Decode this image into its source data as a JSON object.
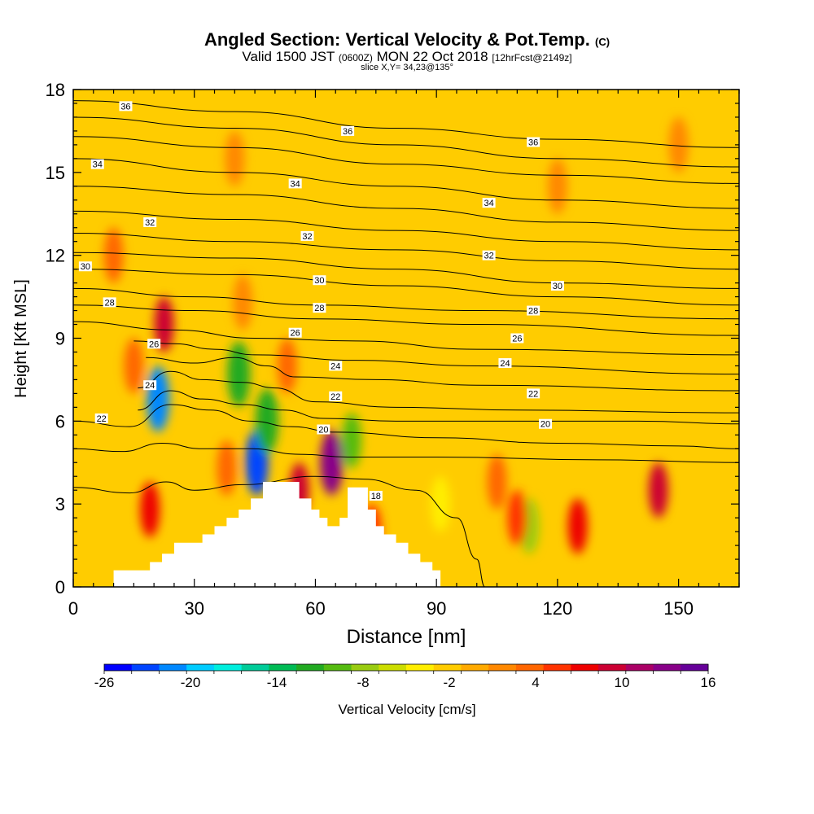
{
  "title": {
    "main": "Angled Section: Vertical Velocity & Pot.Temp.",
    "main_unit": "(C)",
    "valid": "Valid 1500 JST",
    "valid_utc": "(0600Z)",
    "valid_date": "MON 22 Oct 2018",
    "forecast": "[12hrFcst@2149z]",
    "slice": "slice X,Y= 34,23@135°"
  },
  "chart_data": {
    "type": "heatmap",
    "xlabel": "Distance [nm]",
    "ylabel": "Height [Kft MSL]",
    "xlim": [
      0,
      165
    ],
    "ylim": [
      0,
      18
    ],
    "xticks": [
      0,
      30,
      60,
      90,
      120,
      150
    ],
    "yticks": [
      0,
      3,
      6,
      9,
      12,
      15,
      18
    ],
    "colorbar": {
      "label": "Vertical Velocity [cm/s]",
      "range": [
        -26,
        16
      ],
      "tick_values": [
        -26,
        -20,
        -14,
        -8,
        -2,
        4,
        10,
        16
      ],
      "tick_labels": [
        "-26",
        "-20",
        "-14",
        "-8",
        "-2",
        "4",
        "10",
        "16"
      ],
      "colors": [
        "#0000ff",
        "#0044ff",
        "#0088ff",
        "#00ccff",
        "#00eedd",
        "#00cc99",
        "#00bb55",
        "#22aa22",
        "#55bb11",
        "#99cc11",
        "#ccdd00",
        "#ffee00",
        "#ffcc00",
        "#ffaa00",
        "#ff8800",
        "#ff6600",
        "#ff3300",
        "#ee0000",
        "#cc0033",
        "#aa0066",
        "#880088",
        "#660099"
      ]
    },
    "background_value": -1.5,
    "features": [
      {
        "x": 21,
        "y": 6.8,
        "value": -22
      },
      {
        "x": 41,
        "y": 7.7,
        "value": -12
      },
      {
        "x": 45.5,
        "y": 4.5,
        "value": -24
      },
      {
        "x": 48,
        "y": 6.0,
        "value": -12
      },
      {
        "x": 69,
        "y": 5.3,
        "value": -10
      },
      {
        "x": 113,
        "y": 2.2,
        "value": -7
      },
      {
        "x": 91,
        "y": 3.0,
        "value": -5
      },
      {
        "x": 64,
        "y": 4.5,
        "value": 14
      },
      {
        "x": 56,
        "y": 3.5,
        "value": 10
      },
      {
        "x": 19,
        "y": 2.8,
        "value": 8
      },
      {
        "x": 22.5,
        "y": 9.5,
        "value": 9
      },
      {
        "x": 145,
        "y": 3.5,
        "value": 10
      },
      {
        "x": 125,
        "y": 2.2,
        "value": 7
      },
      {
        "x": 110,
        "y": 2.5,
        "value": 5
      },
      {
        "x": 105,
        "y": 3.8,
        "value": 3
      },
      {
        "x": 53,
        "y": 8.0,
        "value": 4
      },
      {
        "x": 74,
        "y": 2.0,
        "value": 6
      },
      {
        "x": 10,
        "y": 12.0,
        "value": 3
      },
      {
        "x": 15,
        "y": 8.0,
        "value": 3
      },
      {
        "x": 42,
        "y": 10.3,
        "value": 2
      },
      {
        "x": 120,
        "y": 14.5,
        "value": 1
      },
      {
        "x": 150,
        "y": 16.0,
        "value": 1
      },
      {
        "x": 40,
        "y": 15.5,
        "value": 1
      },
      {
        "x": 38,
        "y": 4.3,
        "value": 3
      }
    ],
    "terrain": [
      [
        10,
        0.6
      ],
      [
        19,
        0.6
      ],
      [
        19,
        0.9
      ],
      [
        22,
        0.9
      ],
      [
        22,
        1.2
      ],
      [
        25,
        1.2
      ],
      [
        25,
        1.6
      ],
      [
        32,
        1.6
      ],
      [
        32,
        1.9
      ],
      [
        35,
        1.9
      ],
      [
        35,
        2.2
      ],
      [
        38,
        2.2
      ],
      [
        38,
        2.5
      ],
      [
        41,
        2.5
      ],
      [
        41,
        2.8
      ],
      [
        44,
        2.8
      ],
      [
        44,
        3.2
      ],
      [
        47,
        3.2
      ],
      [
        47,
        3.8
      ],
      [
        56,
        3.8
      ],
      [
        56,
        3.2
      ],
      [
        59,
        3.2
      ],
      [
        59,
        2.8
      ],
      [
        61,
        2.8
      ],
      [
        61,
        2.5
      ],
      [
        63,
        2.5
      ],
      [
        63,
        2.2
      ],
      [
        66,
        2.2
      ],
      [
        66,
        2.5
      ],
      [
        68,
        2.5
      ],
      [
        68,
        3.6
      ],
      [
        73,
        3.6
      ],
      [
        73,
        2.8
      ],
      [
        75,
        2.8
      ],
      [
        75,
        2.2
      ],
      [
        77,
        2.2
      ],
      [
        77,
        1.9
      ],
      [
        80,
        1.9
      ],
      [
        80,
        1.6
      ],
      [
        83,
        1.6
      ],
      [
        83,
        1.2
      ],
      [
        86,
        1.2
      ],
      [
        86,
        0.9
      ],
      [
        89,
        0.9
      ],
      [
        89,
        0.6
      ],
      [
        91,
        0.6
      ],
      [
        91,
        0
      ]
    ],
    "isentropes": [
      {
        "label": "36",
        "points": [
          [
            0,
            17.6
          ],
          [
            40,
            17.2
          ],
          [
            80,
            16.6
          ],
          [
            120,
            16.2
          ],
          [
            165,
            15.9
          ]
        ]
      },
      {
        "label": "",
        "points": [
          [
            0,
            17.0
          ],
          [
            40,
            16.6
          ],
          [
            80,
            16.0
          ],
          [
            120,
            15.5
          ],
          [
            165,
            15.2
          ]
        ]
      },
      {
        "label": "",
        "points": [
          [
            0,
            16.3
          ],
          [
            40,
            15.9
          ],
          [
            80,
            15.3
          ],
          [
            120,
            14.9
          ],
          [
            165,
            14.6
          ]
        ]
      },
      {
        "label": "34",
        "points": [
          [
            0,
            15.5
          ],
          [
            40,
            15.0
          ],
          [
            80,
            14.5
          ],
          [
            120,
            14.0
          ],
          [
            165,
            13.7
          ]
        ]
      },
      {
        "label": "",
        "points": [
          [
            0,
            14.5
          ],
          [
            40,
            14.2
          ],
          [
            80,
            13.7
          ],
          [
            120,
            13.2
          ],
          [
            165,
            12.9
          ]
        ]
      },
      {
        "label": "",
        "points": [
          [
            0,
            13.6
          ],
          [
            40,
            13.3
          ],
          [
            80,
            12.9
          ],
          [
            120,
            12.5
          ],
          [
            165,
            12.2
          ]
        ]
      },
      {
        "label": "32",
        "points": [
          [
            0,
            12.8
          ],
          [
            40,
            12.5
          ],
          [
            80,
            12.2
          ],
          [
            120,
            11.8
          ],
          [
            165,
            11.5
          ]
        ]
      },
      {
        "label": "",
        "points": [
          [
            0,
            12.1
          ],
          [
            40,
            11.9
          ],
          [
            80,
            11.5
          ],
          [
            120,
            11.0
          ],
          [
            165,
            10.8
          ]
        ]
      },
      {
        "label": "30",
        "points": [
          [
            0,
            11.5
          ],
          [
            40,
            11.3
          ],
          [
            80,
            10.9
          ],
          [
            120,
            10.5
          ],
          [
            165,
            10.2
          ]
        ]
      },
      {
        "label": "",
        "points": [
          [
            0,
            10.8
          ],
          [
            30,
            10.5
          ],
          [
            60,
            10.2
          ],
          [
            100,
            10.0
          ],
          [
            165,
            9.7
          ]
        ]
      },
      {
        "label": "28",
        "points": [
          [
            0,
            10.2
          ],
          [
            30,
            10.0
          ],
          [
            60,
            9.7
          ],
          [
            100,
            9.5
          ],
          [
            165,
            9.1
          ]
        ]
      },
      {
        "label": "",
        "points": [
          [
            0,
            9.6
          ],
          [
            25,
            9.3
          ],
          [
            45,
            9.0
          ],
          [
            70,
            8.9
          ],
          [
            100,
            8.6
          ],
          [
            165,
            8.4
          ]
        ]
      },
      {
        "label": "26",
        "points": [
          [
            15,
            8.9
          ],
          [
            25,
            8.8
          ],
          [
            35,
            8.6
          ],
          [
            45,
            8.4
          ],
          [
            70,
            8.2
          ],
          [
            100,
            8.0
          ],
          [
            165,
            7.7
          ]
        ]
      },
      {
        "label": "",
        "points": [
          [
            18,
            8.3
          ],
          [
            30,
            8.1
          ],
          [
            40,
            8.3
          ],
          [
            48,
            8.0
          ],
          [
            55,
            7.6
          ],
          [
            75,
            7.5
          ],
          [
            100,
            7.3
          ],
          [
            165,
            7.1
          ]
        ]
      },
      {
        "label": "24",
        "points": [
          [
            16,
            7.2
          ],
          [
            24,
            7.8
          ],
          [
            32,
            7.5
          ],
          [
            42,
            7.4
          ],
          [
            50,
            7.2
          ],
          [
            60,
            6.7
          ],
          [
            80,
            6.5
          ],
          [
            110,
            6.4
          ],
          [
            165,
            6.3
          ]
        ]
      },
      {
        "label": "22",
        "points": [
          [
            16,
            6.4
          ],
          [
            24,
            7.1
          ],
          [
            32,
            6.8
          ],
          [
            42,
            6.6
          ],
          [
            52,
            6.4
          ],
          [
            62,
            6.1
          ],
          [
            80,
            6.0
          ],
          [
            110,
            6.0
          ],
          [
            140,
            6.0
          ],
          [
            165,
            5.9
          ]
        ]
      },
      {
        "label": "",
        "points": [
          [
            0,
            6.0
          ],
          [
            14,
            5.8
          ],
          [
            24,
            6.6
          ],
          [
            34,
            6.4
          ],
          [
            44,
            6.0
          ],
          [
            54,
            5.8
          ],
          [
            65,
            5.6
          ],
          [
            90,
            5.4
          ],
          [
            120,
            5.2
          ],
          [
            150,
            5.1
          ],
          [
            165,
            5.0
          ]
        ]
      },
      {
        "label": "20",
        "points": [
          [
            0,
            5.0
          ],
          [
            12,
            4.9
          ],
          [
            22,
            5.2
          ],
          [
            32,
            5.0
          ],
          [
            44,
            5.0
          ],
          [
            56,
            4.8
          ],
          [
            68,
            4.7
          ],
          [
            90,
            4.7
          ],
          [
            130,
            4.6
          ],
          [
            165,
            4.5
          ]
        ]
      },
      {
        "label": "18",
        "points": [
          [
            0,
            3.6
          ],
          [
            14,
            3.4
          ],
          [
            23,
            3.8
          ],
          [
            30,
            3.5
          ],
          [
            42,
            3.7
          ],
          [
            60,
            4.0
          ],
          [
            72,
            3.9
          ],
          [
            85,
            3.5
          ],
          [
            95,
            2.5
          ],
          [
            100,
            1.0
          ],
          [
            102,
            0
          ]
        ]
      }
    ],
    "contour_labels": [
      {
        "x": 13,
        "y": 17.4,
        "text": "36"
      },
      {
        "x": 68,
        "y": 16.5,
        "text": "36"
      },
      {
        "x": 114,
        "y": 16.1,
        "text": "36"
      },
      {
        "x": 6,
        "y": 15.3,
        "text": "34"
      },
      {
        "x": 55,
        "y": 14.6,
        "text": "34"
      },
      {
        "x": 103,
        "y": 13.9,
        "text": "34"
      },
      {
        "x": 19,
        "y": 13.2,
        "text": "32"
      },
      {
        "x": 58,
        "y": 12.7,
        "text": "32"
      },
      {
        "x": 103,
        "y": 12.0,
        "text": "32"
      },
      {
        "x": 3,
        "y": 11.6,
        "text": "30"
      },
      {
        "x": 61,
        "y": 11.1,
        "text": "30"
      },
      {
        "x": 120,
        "y": 10.9,
        "text": "30"
      },
      {
        "x": 9,
        "y": 10.3,
        "text": "28"
      },
      {
        "x": 61,
        "y": 10.1,
        "text": "28"
      },
      {
        "x": 114,
        "y": 10.0,
        "text": "28"
      },
      {
        "x": 55,
        "y": 9.2,
        "text": "26"
      },
      {
        "x": 110,
        "y": 9.0,
        "text": "26"
      },
      {
        "x": 20,
        "y": 8.8,
        "text": "26"
      },
      {
        "x": 65,
        "y": 8.0,
        "text": "24"
      },
      {
        "x": 107,
        "y": 8.1,
        "text": "24"
      },
      {
        "x": 19,
        "y": 7.3,
        "text": "24"
      },
      {
        "x": 65,
        "y": 6.9,
        "text": "22"
      },
      {
        "x": 114,
        "y": 7.0,
        "text": "22"
      },
      {
        "x": 7,
        "y": 6.1,
        "text": "22"
      },
      {
        "x": 62,
        "y": 5.7,
        "text": "20"
      },
      {
        "x": 117,
        "y": 5.9,
        "text": "20"
      },
      {
        "x": 75,
        "y": 3.3,
        "text": "18"
      }
    ]
  }
}
